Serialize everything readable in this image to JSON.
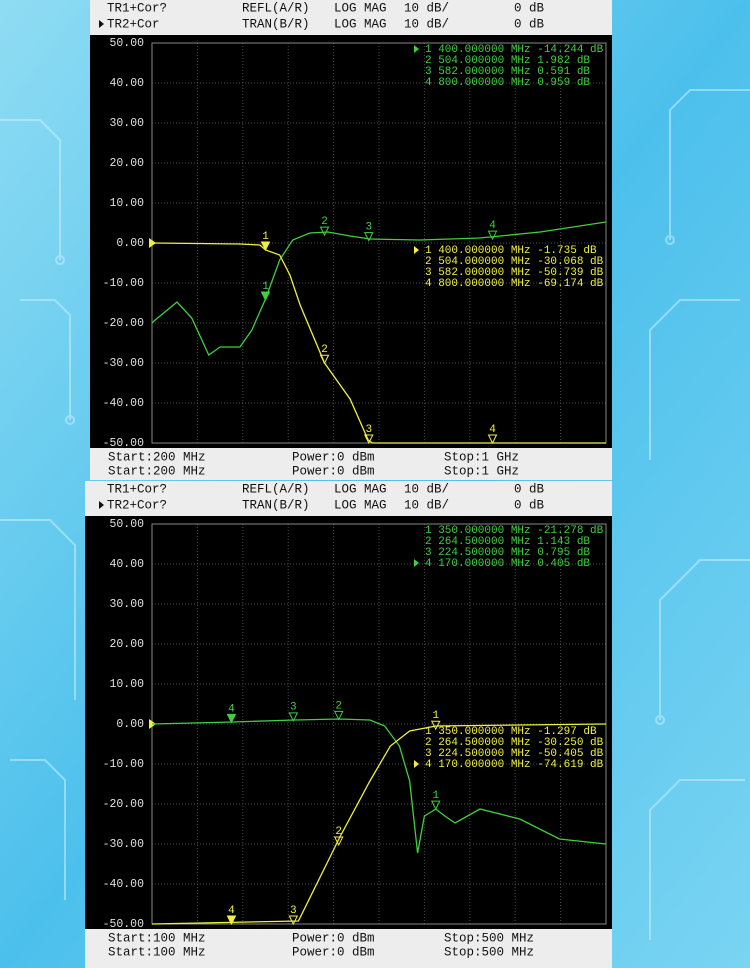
{
  "chart_data": [
    {
      "type": "line",
      "header": [
        [
          "TR1+Cor?",
          "REFL(A/R)",
          "LOG MAG",
          "10 dB/",
          "0 dB"
        ],
        [
          "TR2+Cor",
          "TRAN(B/R)",
          "LOG MAG",
          "10 dB/",
          "0 dB"
        ]
      ],
      "footer": [
        [
          "Start:200 MHz",
          "Power:0 dBm",
          "Stop:1 GHz"
        ],
        [
          "Start:200 MHz",
          "Power:0 dBm",
          "Stop:1 GHz"
        ]
      ],
      "active_trace": 1,
      "active_marker": 0,
      "xlim": [
        200,
        1000
      ],
      "xticks": [
        200,
        280,
        360,
        440,
        520,
        600,
        680,
        760,
        840,
        920,
        1000
      ],
      "ylim": [
        -50,
        50
      ],
      "yticks": [
        {
          "value": 50,
          "label": "50.00"
        },
        {
          "value": 40,
          "label": "40.00"
        },
        {
          "value": 30,
          "label": "30.00"
        },
        {
          "value": 20,
          "label": "20.00"
        },
        {
          "value": 10,
          "label": "10.00"
        },
        {
          "value": 0,
          "label": "0.00"
        },
        {
          "value": -10,
          "label": "-10.00"
        },
        {
          "value": -20,
          "label": "-20.00"
        },
        {
          "value": -30,
          "label": "-30.00"
        },
        {
          "value": -40,
          "label": "-40.00"
        },
        {
          "value": -50,
          "label": "-50.00"
        }
      ],
      "series": [
        {
          "color": "#3fcf3f",
          "x": [
            200,
            205,
            244,
            270,
            300,
            320,
            355,
            376,
            400,
            425,
            448,
            478,
            510,
            549,
            584,
            672,
            778,
            884,
            1000
          ],
          "values": [
            -20,
            -19.3,
            -14.75,
            -18.75,
            -28,
            -26,
            -26,
            -21.75,
            -14,
            -4.25,
            0.75,
            2.5,
            2.75,
            1.75,
            1,
            0.75,
            1.25,
            2.75,
            5.25
          ],
          "markers": {
            "ids": [
              "1",
              "2",
              "3",
              "4"
            ],
            "x": [
              400,
              504,
              582,
              800
            ],
            "values": [
              -14.244,
              1.982,
              0.591,
              0.959
            ],
            "labels": [
              "1 400.000000 MHz -14.244 dB",
              "2 504.000000 MHz 1.982 dB",
              "3 582.000000 MHz 0.591 dB",
              "4 800.000000 MHz 0.959 dB"
            ]
          }
        },
        {
          "color": "#f0f040",
          "x": [
            200,
            355,
            390,
            400,
            425,
            443,
            461,
            504,
            549,
            581,
            588,
            1000
          ],
          "values": [
            0,
            -0.25,
            -0.5,
            -1.735,
            -3,
            -8,
            -15.5,
            -30,
            -39,
            -49.25,
            -50,
            -50
          ],
          "markers": {
            "ids": [
              "1",
              "2",
              "3",
              "4"
            ],
            "x": [
              400,
              504,
              582,
              800
            ],
            "values": [
              -1.735,
              -30.068,
              -50.739,
              -69.174
            ],
            "labels": [
              "1 400.000000 MHz -1.735 dB",
              "2 504.000000 MHz -30.068 dB",
              "3 582.000000 MHz -50.739 dB",
              "4 800.000000 MHz -69.174 dB"
            ]
          }
        }
      ]
    },
    {
      "type": "line",
      "header": [
        [
          "TR1+Cor?",
          "REFL(A/R)",
          "LOG MAG",
          "10 dB/",
          "0 dB"
        ],
        [
          "TR2+Cor?",
          "TRAN(B/R)",
          "LOG MAG",
          "10 dB/",
          "0 dB"
        ]
      ],
      "footer": [
        [
          "Start:100 MHz",
          "Power:0 dBm",
          "Stop:500 MHz"
        ],
        [
          "Start:100 MHz",
          "Power:0 dBm",
          "Stop:500 MHz"
        ]
      ],
      "active_trace": 1,
      "active_marker": 3,
      "xlim": [
        100,
        500
      ],
      "xticks": [
        100,
        140,
        180,
        220,
        260,
        300,
        340,
        380,
        420,
        460,
        500
      ],
      "ylim": [
        -50,
        50
      ],
      "yticks": [
        {
          "value": 50,
          "label": "50.00"
        },
        {
          "value": 40,
          "label": "40.00"
        },
        {
          "value": 30,
          "label": "30.00"
        },
        {
          "value": 20,
          "label": "20.00"
        },
        {
          "value": 10,
          "label": "10.00"
        },
        {
          "value": 0,
          "label": "0.00"
        },
        {
          "value": -10,
          "label": "-10.00"
        },
        {
          "value": -20,
          "label": "-20.00"
        },
        {
          "value": -30,
          "label": "-30.00"
        },
        {
          "value": -40,
          "label": "-40.00"
        },
        {
          "value": -50,
          "label": "-50.00"
        }
      ],
      "series": [
        {
          "color": "#3fcf3f",
          "x": [
            100,
            171,
            226,
            265,
            292,
            305,
            318,
            327,
            334,
            340,
            350,
            358,
            367,
            389,
            424,
            459,
            500
          ],
          "values": [
            0,
            0.5,
            1,
            1.25,
            1,
            -0.5,
            -5.5,
            -14.25,
            -32.25,
            -23,
            -21.278,
            -23,
            -24.75,
            -21.25,
            -23.75,
            -28.75,
            -30
          ],
          "markers": {
            "ids": [
              "1",
              "2",
              "3",
              "4"
            ],
            "x": [
              350,
              264.5,
              224.5,
              170
            ],
            "values": [
              -21.278,
              1.143,
              0.795,
              0.405
            ],
            "labels": [
              "1 350.000000 MHz -21.278 dB",
              "2 264.500000 MHz 1.143 dB",
              "3 224.500000 MHz 0.795 dB",
              "4 170.000000 MHz 0.405 dB"
            ]
          }
        },
        {
          "color": "#f0f040",
          "x": [
            100,
            229,
            266,
            292,
            310,
            327,
            350,
            500
          ],
          "values": [
            -50,
            -49.25,
            -28,
            -14.25,
            -5.5,
            -1.75,
            -0.5,
            0
          ],
          "markers": {
            "ids": [
              "1",
              "2",
              "3",
              "4"
            ],
            "x": [
              350,
              264.5,
              224.5,
              170
            ],
            "values": [
              -1.297,
              -30.25,
              -50.405,
              -74.619
            ],
            "labels": [
              "1 350.000000 MHz -1.297 dB",
              "2 264.500000 MHz -30.250 dB",
              "3 224.500000 MHz -50.405 dB",
              "4 170.000000 MHz -74.619 dB"
            ]
          }
        }
      ]
    }
  ]
}
